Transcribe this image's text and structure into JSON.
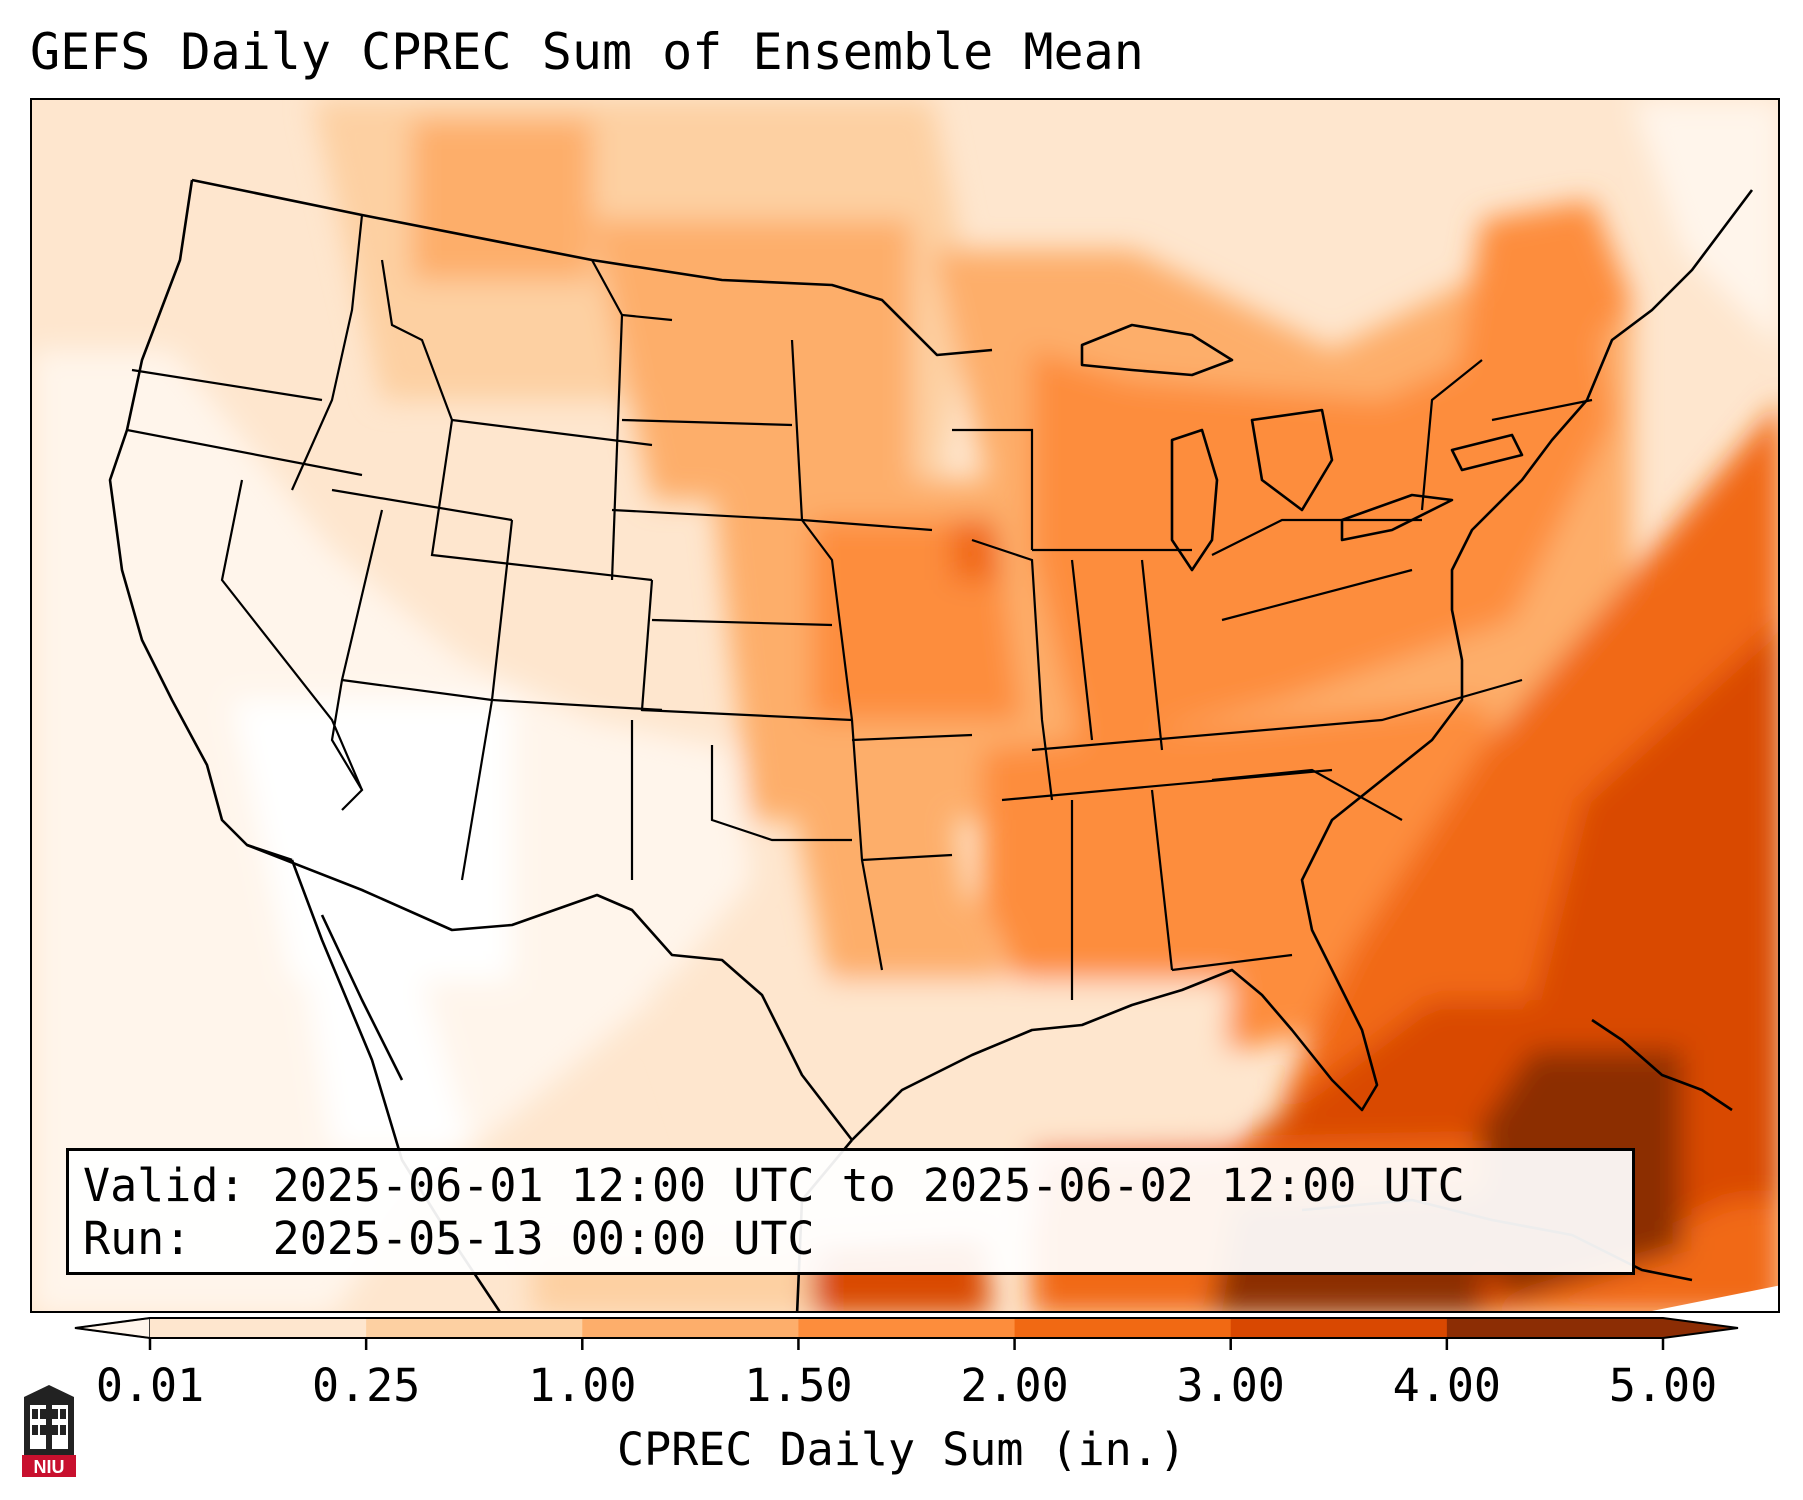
{
  "title": "GEFS Daily CPREC Sum of Ensemble Mean",
  "info": {
    "valid_label": "Valid:",
    "valid_value": "2025-06-01 12:00 UTC to 2025-06-02 12:00 UTC",
    "run_label": "Run:",
    "run_value": "2025-05-13 00:00 UTC"
  },
  "colorbar": {
    "label": "CPREC Daily Sum (in.)",
    "ticks": [
      "0.01",
      "0.25",
      "1.00",
      "1.50",
      "2.00",
      "3.00",
      "4.00",
      "5.00"
    ],
    "colors": [
      "#fff5eb",
      "#fee6ce",
      "#fdd0a2",
      "#fdae6b",
      "#fd8d3c",
      "#f16913",
      "#d94801",
      "#8c2d04"
    ]
  },
  "map": {
    "region": "Contiguous United States",
    "land_fill": "#ffffff",
    "border_color": "#000000"
  },
  "logo": {
    "text": "NIU",
    "colors": {
      "red": "#c8102e",
      "dark": "#222222"
    }
  }
}
